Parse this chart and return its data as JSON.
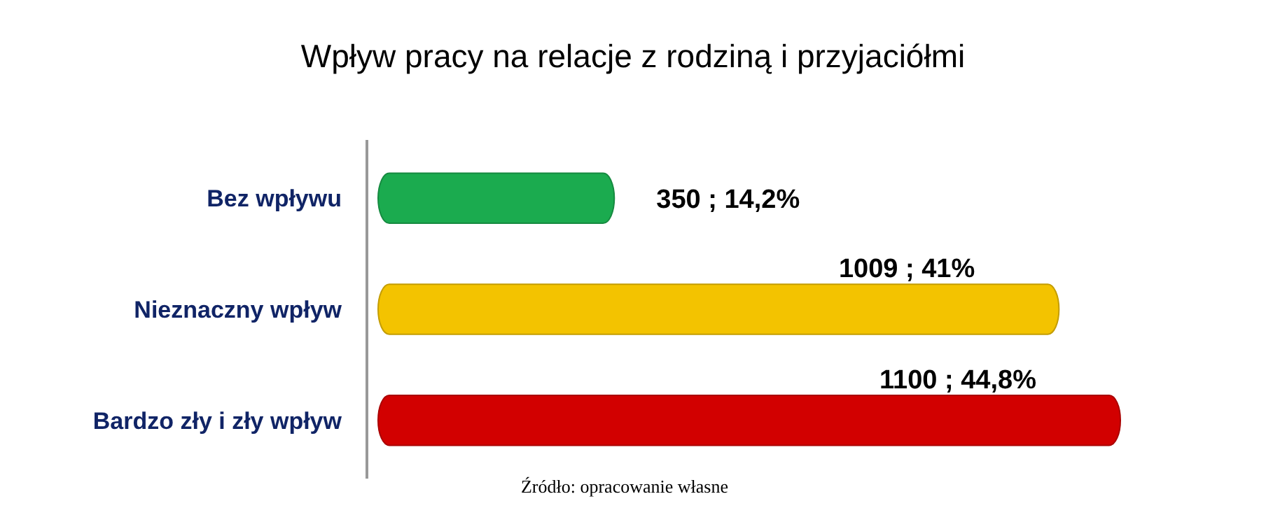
{
  "chart_data": {
    "type": "bar",
    "orientation": "horizontal",
    "title": "Wpływ pracy na relacje z rodziną i przyjaciółmi",
    "categories": [
      "Bez wpływu",
      "Nieznaczny wpływ",
      "Bardzo zły i zły wpływ"
    ],
    "values": [
      350,
      1009,
      1100
    ],
    "colors": [
      "#1bab4f",
      "#f3c300",
      "#d20000"
    ],
    "value_labels": [
      "350 ; 14,2%",
      "1009 ; 41%",
      "1100 ; 44,8%"
    ],
    "annotations": [
      "Źródło: opracowanie własne"
    ]
  }
}
